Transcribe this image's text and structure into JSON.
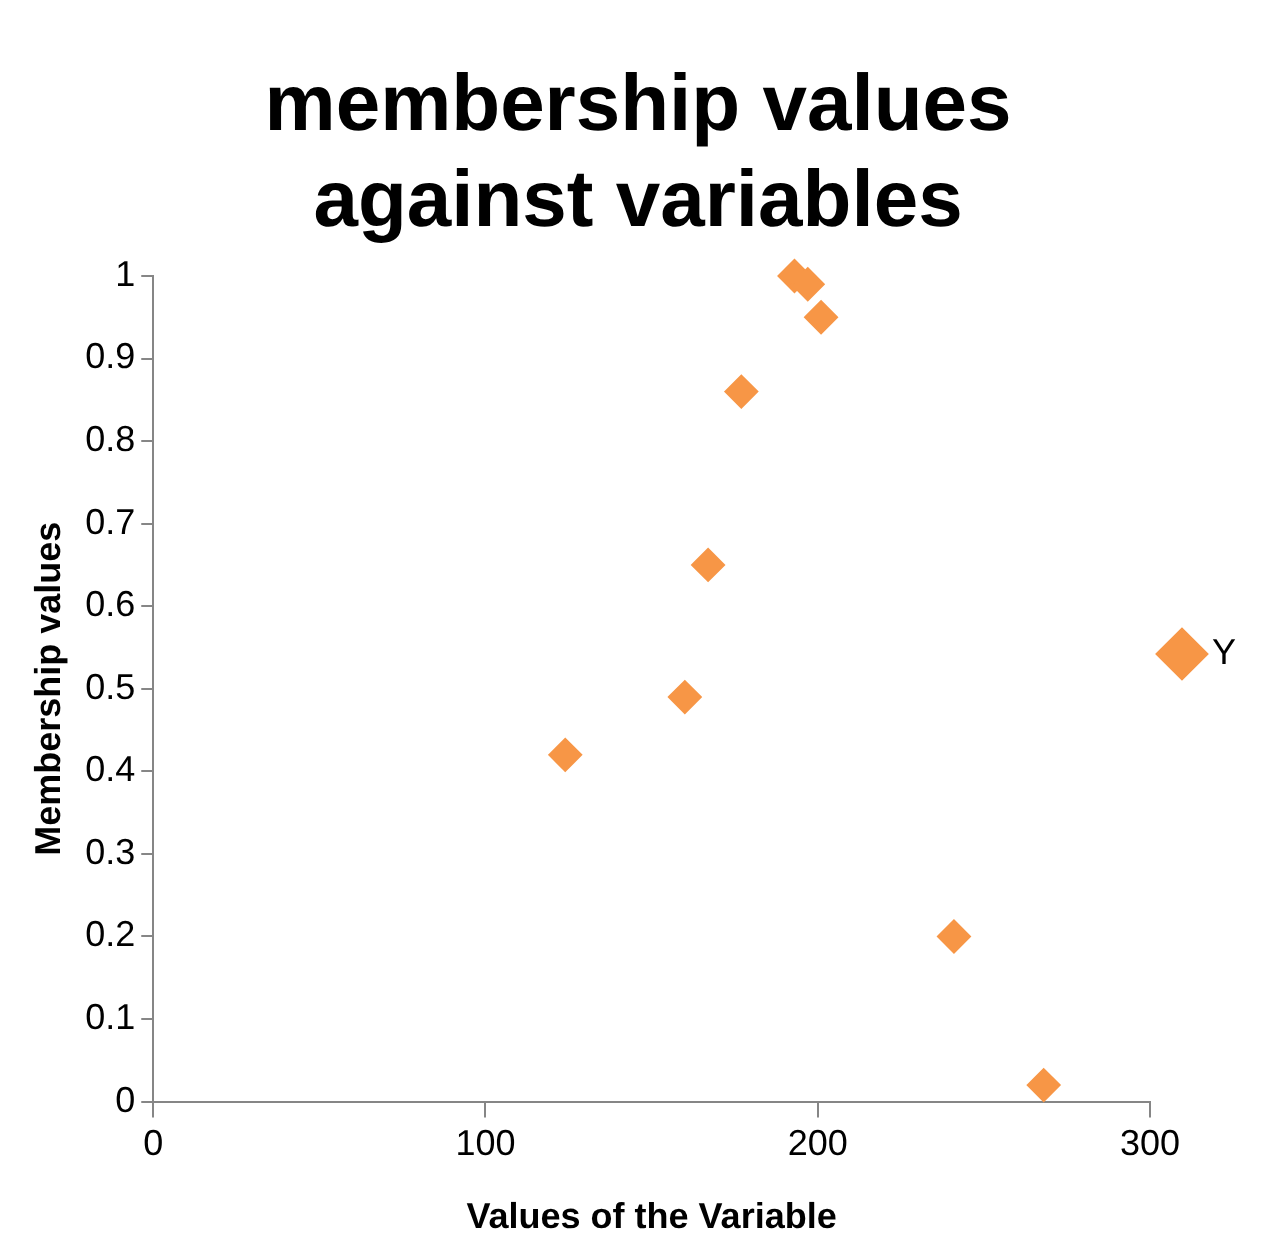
{
  "chart_data": {
    "type": "scatter",
    "title": "membership values against variables",
    "xlabel": "Values of the Variable",
    "ylabel": "Membership values",
    "x": [
      124,
      160,
      167,
      177,
      193,
      197,
      201,
      241,
      268
    ],
    "series": [
      {
        "name": "Y",
        "color": "#f79646",
        "values": [
          0.42,
          0.49,
          0.65,
          0.86,
          1.0,
          0.99,
          0.95,
          0.2,
          0.02
        ]
      }
    ],
    "xlim": [
      0,
      300
    ],
    "xticks": [
      0,
      100,
      200,
      300
    ],
    "ylim": [
      0,
      1
    ],
    "yticks": [
      0,
      0.1,
      0.2,
      0.3,
      0.4,
      0.5,
      0.6,
      0.7,
      0.8,
      0.9,
      1
    ],
    "grid": false,
    "legend": "right",
    "marker": "diamond"
  }
}
